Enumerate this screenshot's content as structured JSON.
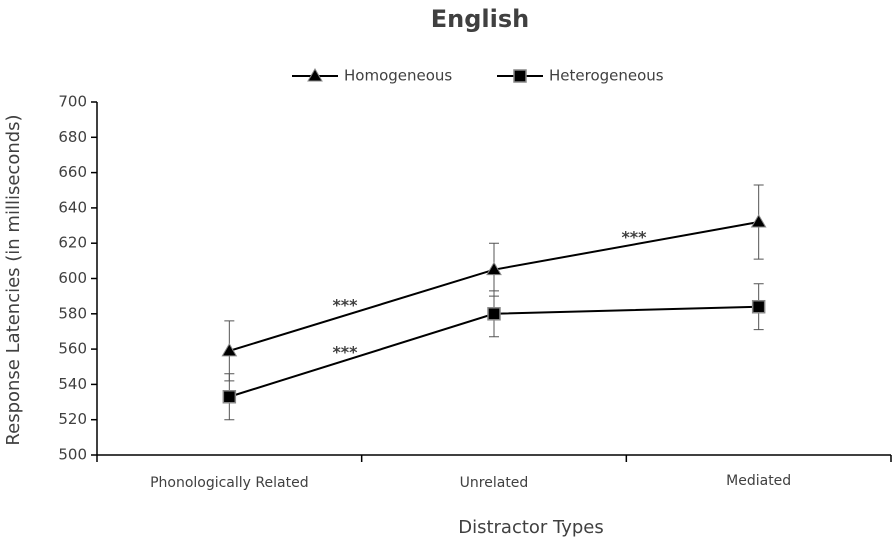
{
  "chart_data": {
    "type": "line",
    "title": "English",
    "x_label": "Distractor Types",
    "y_label": "Response Latencies (in milliseconds)",
    "categories": [
      "Phonologically Related",
      "Unrelated",
      "Mediated"
    ],
    "series": [
      {
        "name": "Homogeneous",
        "color": "#000000",
        "marker": "triangle",
        "values": [
          559,
          605,
          632
        ],
        "errors": [
          17,
          15,
          21
        ]
      },
      {
        "name": "Heterogeneous",
        "color": "#000000",
        "marker": "square",
        "values": [
          533,
          580,
          584
        ],
        "errors": [
          13,
          13,
          13
        ]
      }
    ],
    "annotations": [
      "***",
      "***",
      "***"
    ],
    "ylim": [
      500,
      700
    ],
    "yticks": [
      500,
      520,
      540,
      560,
      580,
      600,
      620,
      640,
      660,
      680,
      700
    ],
    "legend": "top"
  }
}
